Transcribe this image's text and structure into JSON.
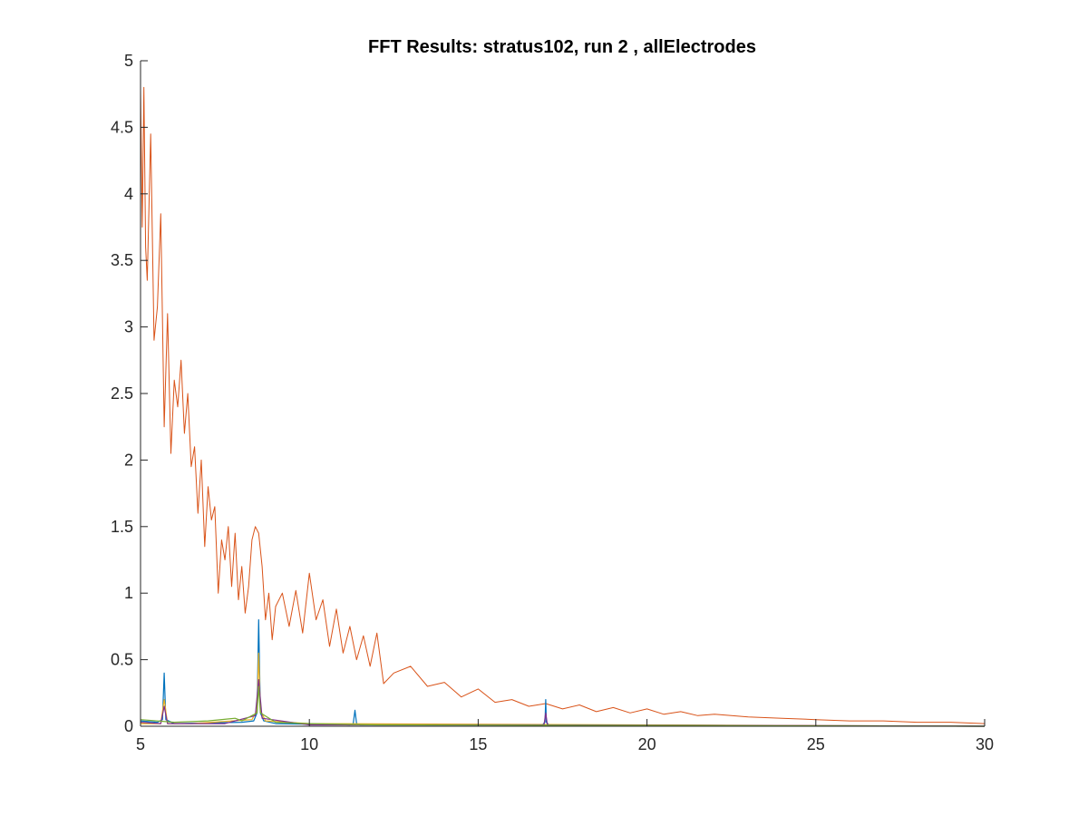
{
  "chart_data": {
    "type": "line",
    "title": "FFT Results: stratus102, run 2 , allElectrodes",
    "xlabel": "",
    "ylabel": "",
    "xlim": [
      5,
      30
    ],
    "ylim": [
      0,
      5
    ],
    "xticks": [
      "5",
      "10",
      "15",
      "20",
      "25",
      "30"
    ],
    "yticks": [
      "0",
      "0.5",
      "1",
      "1.5",
      "2",
      "2.5",
      "3",
      "3.5",
      "4",
      "4.5",
      "5"
    ],
    "grid": false,
    "legend": "none",
    "colors": {
      "main": "#d95319",
      "peaks": [
        "#0072bd",
        "#edb120",
        "#7e2f8e",
        "#77ac30",
        "#4dbeee",
        "#a2142f",
        "#d95319"
      ]
    },
    "series": [
      {
        "color": "#d95319",
        "x": [
          5.0,
          5.05,
          5.1,
          5.15,
          5.2,
          5.3,
          5.4,
          5.5,
          5.6,
          5.7,
          5.8,
          5.9,
          6.0,
          6.1,
          6.2,
          6.3,
          6.4,
          6.5,
          6.6,
          6.7,
          6.8,
          6.9,
          7.0,
          7.1,
          7.2,
          7.3,
          7.4,
          7.5,
          7.6,
          7.7,
          7.8,
          7.9,
          8.0,
          8.1,
          8.2,
          8.3,
          8.4,
          8.5,
          8.6,
          8.7,
          8.8,
          8.9,
          9.0,
          9.2,
          9.4,
          9.6,
          9.8,
          10.0,
          10.2,
          10.4,
          10.6,
          10.8,
          11.0,
          11.2,
          11.4,
          11.6,
          11.8,
          12.0,
          12.2,
          12.5,
          13.0,
          13.5,
          14.0,
          14.5,
          15.0,
          15.5,
          16.0,
          16.5,
          17.0,
          17.5,
          18.0,
          18.5,
          19.0,
          19.5,
          20.0,
          20.5,
          21.0,
          21.5,
          22.0,
          23.0,
          24.0,
          25.0,
          26.0,
          27.0,
          28.0,
          29.0,
          30.0
        ],
        "y": [
          4.78,
          3.75,
          4.8,
          3.6,
          3.35,
          4.45,
          2.9,
          3.15,
          3.85,
          2.25,
          3.1,
          2.05,
          2.6,
          2.4,
          2.75,
          2.2,
          2.5,
          1.95,
          2.1,
          1.6,
          2.0,
          1.35,
          1.8,
          1.55,
          1.65,
          1.0,
          1.4,
          1.25,
          1.5,
          1.05,
          1.45,
          0.95,
          1.2,
          0.85,
          1.05,
          1.4,
          1.5,
          1.45,
          1.2,
          0.8,
          1.0,
          0.65,
          0.9,
          1.0,
          0.75,
          1.02,
          0.7,
          1.15,
          0.8,
          0.95,
          0.6,
          0.88,
          0.55,
          0.75,
          0.5,
          0.68,
          0.45,
          0.7,
          0.32,
          0.4,
          0.45,
          0.3,
          0.33,
          0.22,
          0.28,
          0.18,
          0.2,
          0.15,
          0.17,
          0.13,
          0.16,
          0.11,
          0.14,
          0.1,
          0.13,
          0.09,
          0.11,
          0.08,
          0.09,
          0.07,
          0.06,
          0.05,
          0.04,
          0.04,
          0.03,
          0.03,
          0.02
        ]
      },
      {
        "color": "#0072bd",
        "x": [
          5.0,
          5.5,
          5.65,
          5.7,
          5.75,
          6.0,
          8.0,
          8.35,
          8.45,
          8.5,
          8.55,
          8.65,
          9.0,
          11.2,
          11.3,
          11.35,
          11.4,
          11.5,
          16.9,
          16.98,
          17.0,
          17.02,
          17.1,
          30.0
        ],
        "y": [
          0.04,
          0.03,
          0.05,
          0.4,
          0.05,
          0.02,
          0.03,
          0.04,
          0.1,
          0.8,
          0.1,
          0.04,
          0.02,
          0.01,
          0.02,
          0.12,
          0.02,
          0.01,
          0.01,
          0.03,
          0.2,
          0.03,
          0.01,
          0.0
        ]
      },
      {
        "color": "#edb120",
        "x": [
          5.0,
          5.6,
          5.7,
          5.8,
          6.5,
          8.3,
          8.45,
          8.5,
          8.55,
          8.7,
          10.0,
          30.0
        ],
        "y": [
          0.02,
          0.02,
          0.2,
          0.02,
          0.02,
          0.05,
          0.12,
          0.55,
          0.12,
          0.04,
          0.02,
          0.0
        ]
      },
      {
        "color": "#7e2f8e",
        "x": [
          5.0,
          5.6,
          5.7,
          5.8,
          7.5,
          8.4,
          8.5,
          8.6,
          10.0,
          16.95,
          17.0,
          17.05,
          30.0
        ],
        "y": [
          0.03,
          0.02,
          0.15,
          0.02,
          0.02,
          0.08,
          0.35,
          0.06,
          0.01,
          0.01,
          0.1,
          0.01,
          0.0
        ]
      },
      {
        "color": "#77ac30",
        "x": [
          5.0,
          6.0,
          7.0,
          7.8,
          8.0,
          8.45,
          8.5,
          8.55,
          9.0,
          10.0,
          12.0,
          30.0
        ],
        "y": [
          0.05,
          0.03,
          0.04,
          0.06,
          0.04,
          0.1,
          0.3,
          0.1,
          0.03,
          0.02,
          0.01,
          0.0
        ]
      }
    ]
  }
}
